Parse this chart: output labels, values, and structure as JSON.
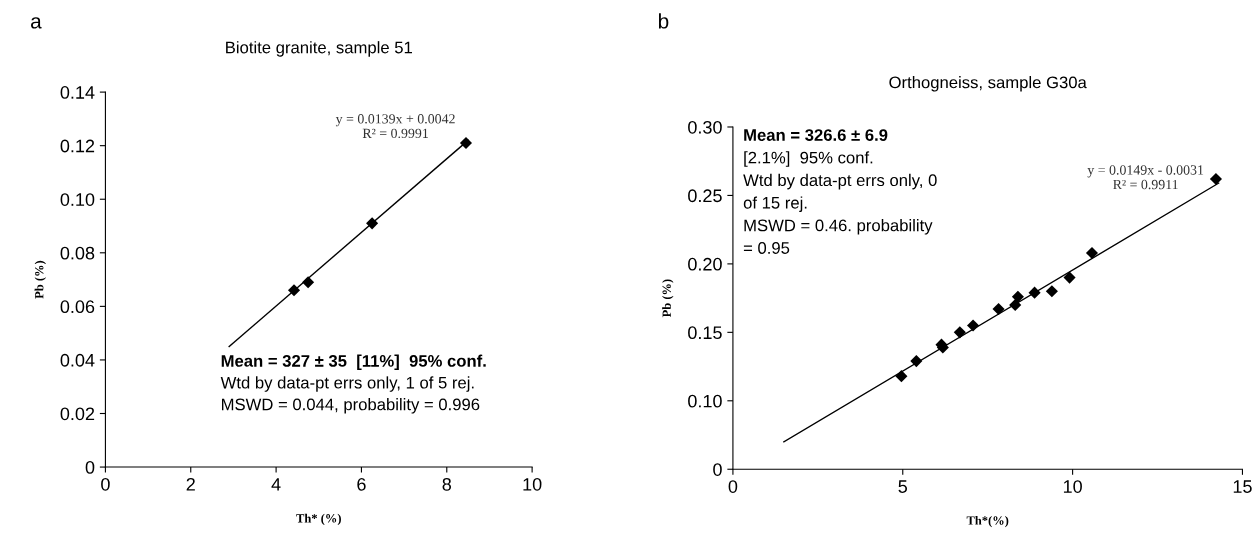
{
  "chart_data": [
    {
      "type": "scatter",
      "title": "Biotite granite, sample 51",
      "xlabel": "Th* (%)",
      "ylabel": "Pb (%)",
      "xlim": [
        0,
        10
      ],
      "xticks": [
        0,
        2,
        4,
        6,
        8,
        10
      ],
      "ylim": [
        0,
        0.14
      ],
      "yticks": [
        0,
        {
          "value": 0.02,
          "label": "0.02"
        },
        {
          "value": 0.04,
          "label": "0.04"
        },
        {
          "value": 0.06,
          "label": "0.06"
        },
        {
          "value": 0.08,
          "label": "0.08"
        },
        {
          "value": 0.1,
          "label": "0.10"
        },
        {
          "value": 0.12,
          "label": "0.12"
        },
        {
          "value": 0.14,
          "label": "0.14"
        }
      ],
      "marker": "diamond",
      "grid": false,
      "series": [
        {
          "color": "#000000",
          "x": [
            4.42,
            4.75,
            6.25,
            8.45
          ],
          "values": [
            0.066,
            0.069,
            0.091,
            0.121
          ]
        },
        {
          "type": "line",
          "color": "#000000",
          "marker": "none",
          "x": [
            2.9,
            8.5
          ],
          "values": [
            0.045,
            0.122
          ]
        }
      ],
      "annotations": [
        "a",
        "y = 0.0139x + 0.0042\nR² = 0.9991",
        "Mean = 327 ± 35  [11%]  95% conf.",
        "Wtd by data-pt errs only, 1 of 5 rej.",
        "MSWD = 0.044, probability = 0.996"
      ]
    },
    {
      "type": "scatter",
      "title": "Orthogneiss, sample G30a",
      "xlabel": "Th*(%)",
      "ylabel": "Pb (%)",
      "xlim": [
        0,
        15
      ],
      "xticks": [
        0,
        5,
        10,
        15
      ],
      "ylim": [
        0.05,
        0.3
      ],
      "yticks": [
        {
          "value": 0.05,
          "label": "0"
        },
        {
          "value": 0.1,
          "label": "0.10"
        },
        {
          "value": 0.15,
          "label": "0.15"
        },
        {
          "value": 0.2,
          "label": "0.20"
        },
        {
          "value": 0.25,
          "label": "0.25"
        },
        {
          "value": 0.3,
          "label": "0.30"
        }
      ],
      "marker": "diamond",
      "grid": false,
      "series": [
        {
          "color": "#000000",
          "x": [
            4.96,
            5.4,
            6.14,
            6.18,
            6.68,
            7.07,
            7.82,
            8.31,
            8.39,
            8.88,
            9.39,
            9.91,
            10.57,
            14.22
          ],
          "values": [
            0.118,
            0.129,
            0.141,
            0.139,
            0.15,
            0.155,
            0.167,
            0.17,
            0.176,
            0.179,
            0.18,
            0.19,
            0.208,
            0.262
          ]
        },
        {
          "type": "line",
          "color": "#000000",
          "marker": "none",
          "x": [
            1.5,
            14.3
          ],
          "values": [
            0.07,
            0.259
          ]
        }
      ],
      "annotations": [
        "b",
        "y = 0.0149x - 0.0031\nR² = 0.9911",
        "Mean = 326.6 ± 6.9",
        "[2.1%]  95% conf.",
        "Wtd by data-pt errs only, 0",
        "of 15 rej.",
        "MSWD = 0.46. probability",
        "= 0.95"
      ]
    }
  ]
}
